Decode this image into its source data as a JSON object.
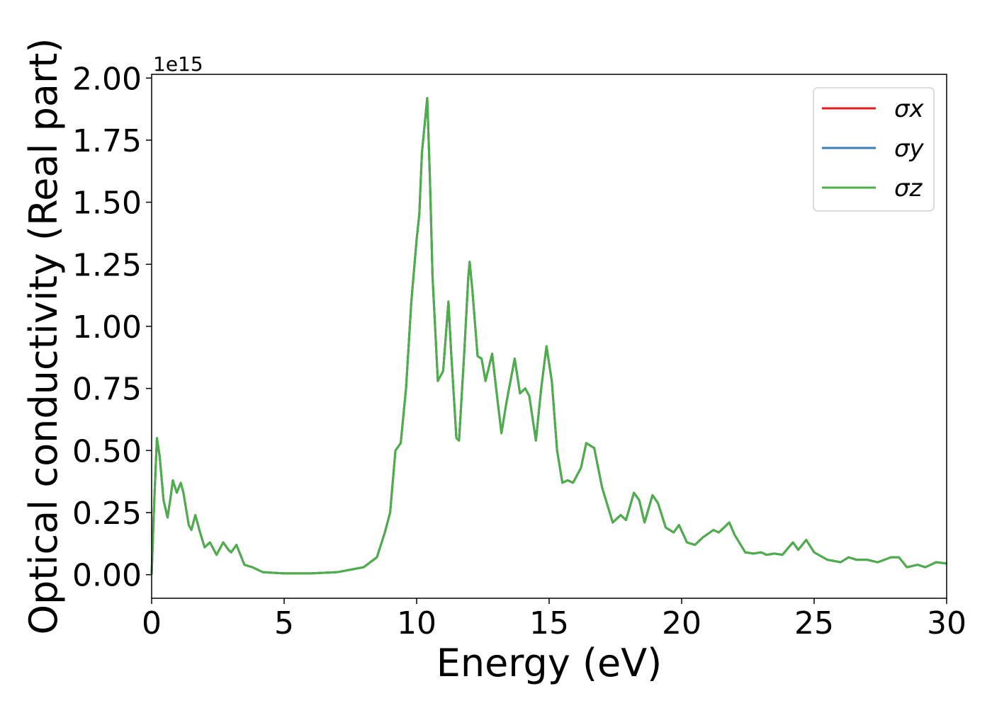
{
  "chart_data": {
    "type": "line",
    "xlabel": "Energy (eV)",
    "ylabel": "Optical conductivity (Real part)",
    "y_offset_label": "1e15",
    "xlim": [
      0,
      30
    ],
    "ylim": [
      -0.095,
      2.015
    ],
    "xticks": [
      0,
      5,
      10,
      15,
      20,
      25,
      30
    ],
    "yticks": [
      {
        "value": 0,
        "label": "0.00"
      },
      0.25,
      {
        "value": 0.5,
        "label": "0.50"
      },
      0.75,
      {
        "value": 1,
        "label": "1.00"
      },
      1.25,
      {
        "value": 1.5,
        "label": "1.50"
      },
      1.75,
      {
        "value": 2,
        "label": "2.00"
      }
    ],
    "grid": false,
    "legend": "upper right",
    "x": [
      0,
      0.1,
      0.2,
      0.3,
      0.45,
      0.6,
      0.7,
      0.8,
      0.95,
      1.1,
      1.2,
      1.4,
      1.5,
      1.65,
      1.8,
      2.0,
      2.2,
      2.45,
      2.7,
      2.9,
      3.0,
      3.2,
      3.5,
      3.8,
      4.2,
      5.0,
      6.0,
      7.0,
      8.0,
      8.5,
      8.8,
      9.0,
      9.2,
      9.4,
      9.6,
      9.8,
      10.0,
      10.1,
      10.2,
      10.4,
      10.5,
      10.6,
      10.8,
      11.0,
      11.2,
      11.3,
      11.5,
      11.6,
      11.8,
      11.95,
      12.0,
      12.1,
      12.3,
      12.45,
      12.6,
      12.85,
      13.0,
      13.2,
      13.4,
      13.7,
      13.9,
      14.1,
      14.25,
      14.5,
      14.7,
      14.9,
      15.1,
      15.3,
      15.5,
      15.7,
      15.9,
      16.2,
      16.4,
      16.7,
      17.0,
      17.4,
      17.7,
      17.9,
      18.2,
      18.4,
      18.6,
      18.9,
      19.1,
      19.4,
      19.7,
      19.9,
      20.2,
      20.5,
      20.8,
      21.2,
      21.4,
      21.8,
      22.0,
      22.4,
      22.7,
      23.0,
      23.2,
      23.5,
      23.8,
      24.2,
      24.4,
      24.7,
      25.0,
      25.5,
      26.0,
      26.3,
      26.6,
      27.0,
      27.4,
      27.9,
      28.2,
      28.5,
      28.9,
      29.2,
      29.6,
      30.0
    ],
    "series": [
      {
        "name": "σx",
        "color": "#e41a1c",
        "values": [
          0,
          0.3,
          0.55,
          0.48,
          0.3,
          0.23,
          0.3,
          0.38,
          0.33,
          0.37,
          0.33,
          0.2,
          0.18,
          0.24,
          0.18,
          0.11,
          0.13,
          0.08,
          0.13,
          0.1,
          0.09,
          0.12,
          0.04,
          0.03,
          0.01,
          0.005,
          0.005,
          0.01,
          0.03,
          0.07,
          0.17,
          0.25,
          0.5,
          0.53,
          0.75,
          1.1,
          1.35,
          1.45,
          1.7,
          1.92,
          1.6,
          1.2,
          0.78,
          0.82,
          1.1,
          0.9,
          0.55,
          0.54,
          0.9,
          1.2,
          1.26,
          1.15,
          0.88,
          0.87,
          0.78,
          0.89,
          0.75,
          0.57,
          0.7,
          0.87,
          0.73,
          0.75,
          0.72,
          0.54,
          0.75,
          0.92,
          0.78,
          0.5,
          0.37,
          0.38,
          0.37,
          0.43,
          0.53,
          0.51,
          0.35,
          0.21,
          0.24,
          0.22,
          0.33,
          0.3,
          0.21,
          0.32,
          0.29,
          0.19,
          0.17,
          0.2,
          0.13,
          0.12,
          0.15,
          0.18,
          0.17,
          0.21,
          0.16,
          0.09,
          0.085,
          0.09,
          0.08,
          0.085,
          0.08,
          0.13,
          0.1,
          0.14,
          0.09,
          0.06,
          0.05,
          0.07,
          0.06,
          0.06,
          0.05,
          0.07,
          0.07,
          0.03,
          0.04,
          0.03,
          0.05,
          0.045
        ]
      },
      {
        "name": "σy",
        "color": "#377eb8",
        "values": [
          0,
          0.3,
          0.55,
          0.48,
          0.3,
          0.23,
          0.3,
          0.38,
          0.33,
          0.37,
          0.33,
          0.2,
          0.18,
          0.24,
          0.18,
          0.11,
          0.13,
          0.08,
          0.13,
          0.1,
          0.09,
          0.12,
          0.04,
          0.03,
          0.01,
          0.005,
          0.005,
          0.01,
          0.03,
          0.07,
          0.17,
          0.25,
          0.5,
          0.53,
          0.75,
          1.1,
          1.35,
          1.45,
          1.7,
          1.92,
          1.6,
          1.2,
          0.78,
          0.82,
          1.1,
          0.9,
          0.55,
          0.54,
          0.9,
          1.2,
          1.26,
          1.15,
          0.88,
          0.87,
          0.78,
          0.89,
          0.75,
          0.57,
          0.7,
          0.87,
          0.73,
          0.75,
          0.72,
          0.54,
          0.75,
          0.92,
          0.78,
          0.5,
          0.37,
          0.38,
          0.37,
          0.43,
          0.53,
          0.51,
          0.35,
          0.21,
          0.24,
          0.22,
          0.33,
          0.3,
          0.21,
          0.32,
          0.29,
          0.19,
          0.17,
          0.2,
          0.13,
          0.12,
          0.15,
          0.18,
          0.17,
          0.21,
          0.16,
          0.09,
          0.085,
          0.09,
          0.08,
          0.085,
          0.08,
          0.13,
          0.1,
          0.14,
          0.09,
          0.06,
          0.05,
          0.07,
          0.06,
          0.06,
          0.05,
          0.07,
          0.07,
          0.03,
          0.04,
          0.03,
          0.05,
          0.045
        ]
      },
      {
        "name": "σz",
        "color": "#4daf4a",
        "values": [
          0,
          0.3,
          0.55,
          0.48,
          0.3,
          0.23,
          0.3,
          0.38,
          0.33,
          0.37,
          0.33,
          0.2,
          0.18,
          0.24,
          0.18,
          0.11,
          0.13,
          0.08,
          0.13,
          0.1,
          0.09,
          0.12,
          0.04,
          0.03,
          0.01,
          0.005,
          0.005,
          0.01,
          0.03,
          0.07,
          0.17,
          0.25,
          0.5,
          0.53,
          0.75,
          1.1,
          1.35,
          1.45,
          1.7,
          1.92,
          1.6,
          1.2,
          0.78,
          0.82,
          1.1,
          0.9,
          0.55,
          0.54,
          0.9,
          1.2,
          1.26,
          1.15,
          0.88,
          0.87,
          0.78,
          0.89,
          0.75,
          0.57,
          0.7,
          0.87,
          0.73,
          0.75,
          0.72,
          0.54,
          0.75,
          0.92,
          0.78,
          0.5,
          0.37,
          0.38,
          0.37,
          0.43,
          0.53,
          0.51,
          0.35,
          0.21,
          0.24,
          0.22,
          0.33,
          0.3,
          0.21,
          0.32,
          0.29,
          0.19,
          0.17,
          0.2,
          0.13,
          0.12,
          0.15,
          0.18,
          0.17,
          0.21,
          0.16,
          0.09,
          0.085,
          0.09,
          0.08,
          0.085,
          0.08,
          0.13,
          0.1,
          0.14,
          0.09,
          0.06,
          0.05,
          0.07,
          0.06,
          0.06,
          0.05,
          0.07,
          0.07,
          0.03,
          0.04,
          0.03,
          0.05,
          0.045
        ]
      }
    ]
  }
}
